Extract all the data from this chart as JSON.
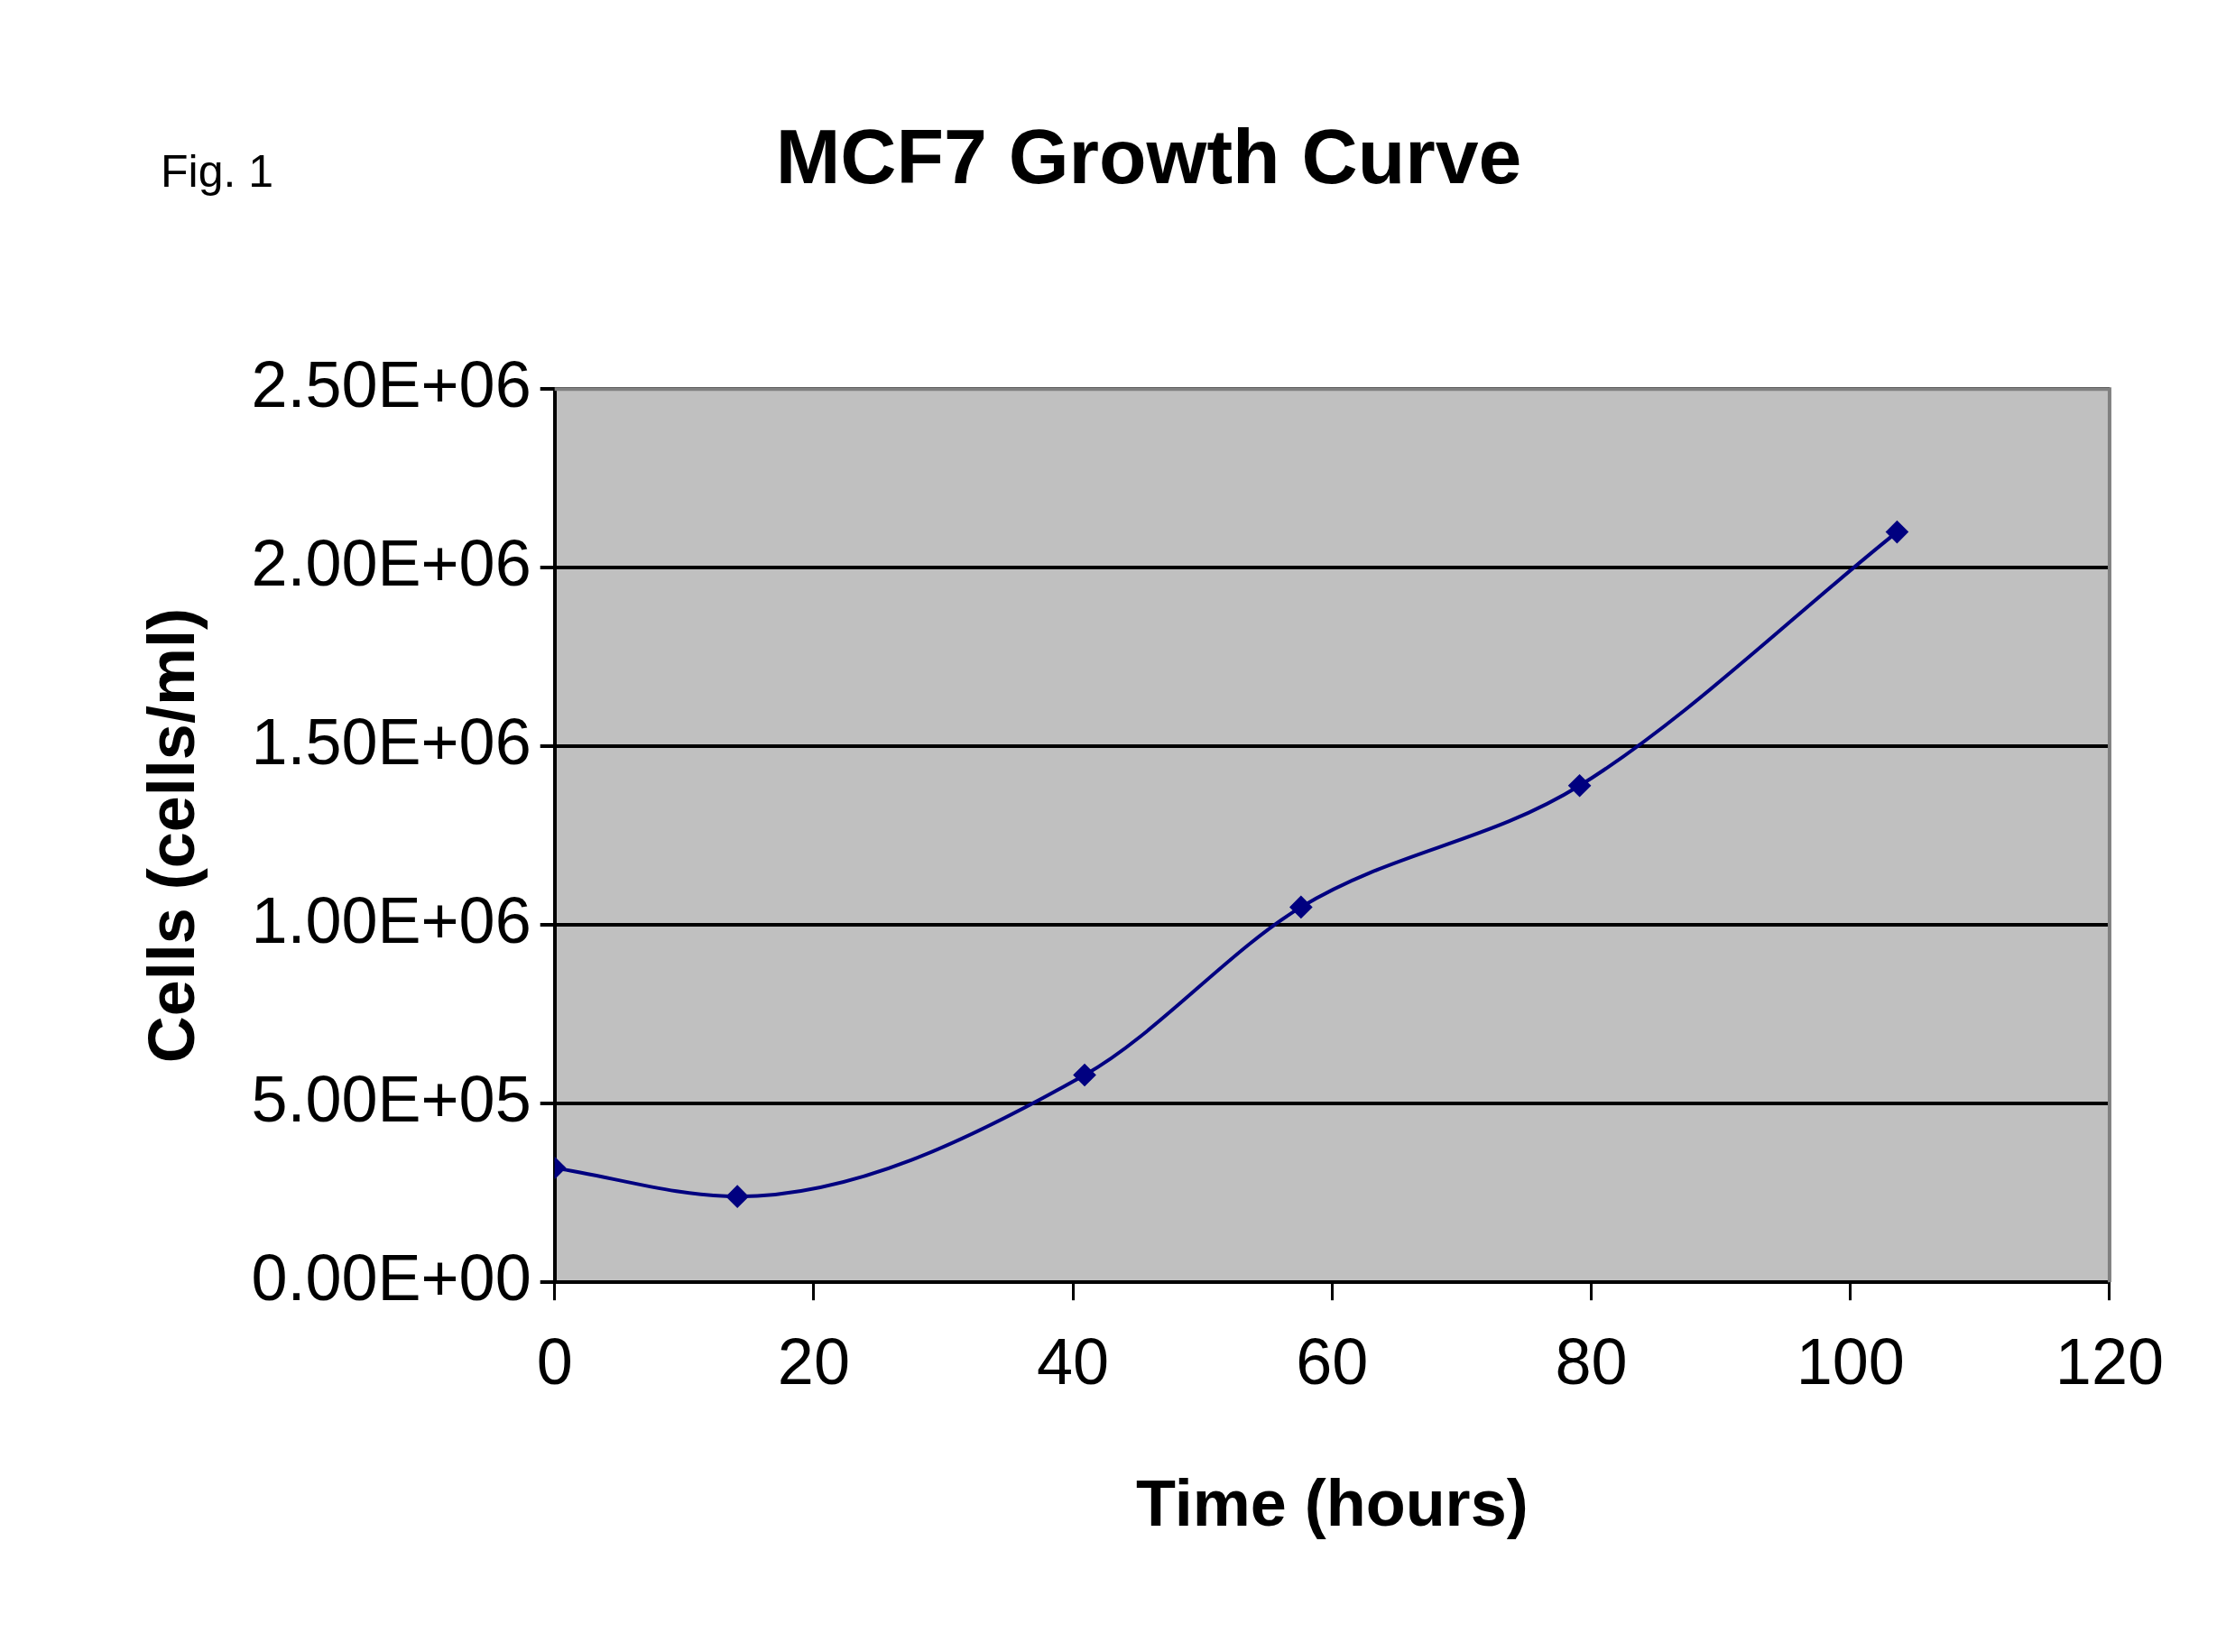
{
  "chart_data": {
    "type": "line",
    "title": "MCF7 Growth Curve",
    "xlabel": "Time (hours)",
    "ylabel": "Cells (cells/ml)",
    "annotations": [
      "Fig. 1"
    ],
    "x": [
      0,
      14.1,
      40.9,
      57.6,
      79.1,
      103.6
    ],
    "series": [
      {
        "color": "#000080",
        "values": [
          320000,
          240000,
          580000,
          1050000,
          1390000,
          2100000
        ]
      }
    ],
    "xlim": [
      0,
      120
    ],
    "xticks": [
      0,
      20,
      40,
      60,
      80,
      100,
      120
    ],
    "ylim": [
      0,
      2500000
    ],
    "yticks": [
      {
        "value": 0,
        "label": "0.00E+00"
      },
      {
        "value": 500000,
        "label": "5.00E+05"
      },
      {
        "value": 1000000,
        "label": "1.00E+06"
      },
      {
        "value": 1500000,
        "label": "1.50E+06"
      },
      {
        "value": 2000000,
        "label": "2.00E+06"
      },
      {
        "value": 2500000,
        "label": "2.50E+06"
      }
    ],
    "grid": "y",
    "legend": false,
    "marker": "diamond",
    "line_style": "solid"
  }
}
